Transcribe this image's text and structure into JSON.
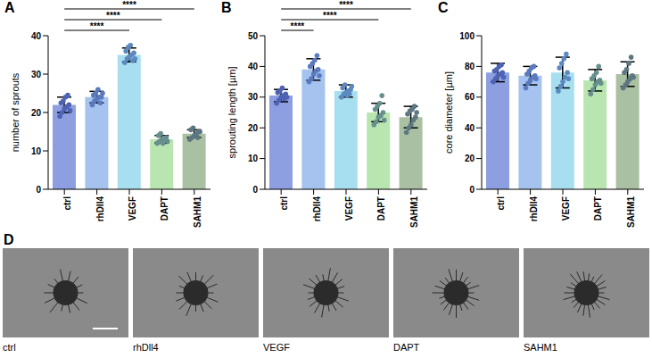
{
  "chart_data": [
    {
      "type": "bar",
      "title": "A",
      "y_label": "number of sprouts",
      "categories": [
        "ctrl",
        "rhDll4",
        "VEGF",
        "DAPT",
        "SAHM1"
      ],
      "values": [
        22,
        24,
        35,
        13,
        14.5
      ],
      "errors": [
        2,
        1.5,
        1.8,
        1,
        1
      ],
      "points": [
        [
          19,
          20,
          21,
          21.5,
          22,
          22.5,
          23,
          24,
          24.5,
          20.5
        ],
        [
          22,
          23,
          23.5,
          24,
          24,
          24.5,
          25,
          26,
          22.5,
          25
        ],
        [
          33,
          34,
          34.5,
          35,
          35.5,
          36,
          37,
          37.5,
          33.5,
          34
        ],
        [
          12,
          12.5,
          13,
          13,
          13.5,
          14,
          14.5,
          12,
          13,
          12.5
        ],
        [
          13,
          13.5,
          14,
          14.5,
          15,
          15.5,
          16,
          14,
          13.5,
          15
        ]
      ],
      "colors": [
        "#8d9fe0",
        "#a5c3ee",
        "#a8dff0",
        "#b9e6b0",
        "#a9c0a2"
      ],
      "ylim": [
        0,
        40
      ],
      "yticks": [
        0,
        10,
        20,
        30,
        40
      ],
      "annotations": [
        {
          "from": "ctrl",
          "to": "VEGF",
          "label": "****"
        },
        {
          "from": "ctrl",
          "to": "DAPT",
          "label": "****"
        },
        {
          "from": "ctrl",
          "to": "SAHM1",
          "label": "****"
        }
      ]
    },
    {
      "type": "bar",
      "title": "B",
      "y_label": "sprouting length [µm]",
      "categories": [
        "ctrl",
        "rhDll4",
        "VEGF",
        "DAPT",
        "SAHM1"
      ],
      "values": [
        30.5,
        39,
        32,
        25,
        23.5
      ],
      "errors": [
        2,
        3.5,
        2,
        3,
        3.5
      ],
      "points": [
        [
          28,
          29,
          30,
          30.5,
          31,
          31.5,
          32,
          33,
          29.5,
          30
        ],
        [
          35,
          36,
          37.5,
          38.5,
          39,
          40,
          41,
          42,
          43.5,
          37
        ],
        [
          30,
          31,
          31.5,
          32,
          32.5,
          33,
          34,
          30.5,
          31,
          33.5
        ],
        [
          21,
          22,
          23.5,
          24,
          25,
          26,
          27,
          28,
          30.5,
          22.5
        ],
        [
          18.5,
          20,
          21,
          22.5,
          23.5,
          24.5,
          25.5,
          26,
          27,
          25
        ]
      ],
      "colors": [
        "#8d9fe0",
        "#a5c3ee",
        "#a8dff0",
        "#b9e6b0",
        "#a9c0a2"
      ],
      "ylim": [
        0,
        50
      ],
      "yticks": [
        0,
        10,
        20,
        30,
        40,
        50
      ],
      "annotations": [
        {
          "from": "ctrl",
          "to": "rhDll4",
          "label": "****"
        },
        {
          "from": "ctrl",
          "to": "DAPT",
          "label": "****"
        },
        {
          "from": "ctrl",
          "to": "SAHM1",
          "label": "****"
        }
      ]
    },
    {
      "type": "bar",
      "title": "C",
      "y_label": "core diameter [µm]",
      "categories": [
        "ctrl",
        "rhDll4",
        "VEGF",
        "DAPT",
        "SAHM1"
      ],
      "values": [
        76,
        74,
        76,
        71,
        75
      ],
      "errors": [
        6,
        6,
        10,
        7,
        8
      ],
      "points": [
        [
          70,
          72,
          74,
          75,
          76,
          77,
          78,
          80,
          81,
          73
        ],
        [
          66,
          69,
          71,
          73,
          74,
          75,
          77,
          79,
          80,
          72
        ],
        [
          64,
          67,
          70,
          73,
          76,
          79,
          82,
          85,
          88,
          72
        ],
        [
          62,
          65,
          68,
          70,
          71,
          72,
          74,
          76,
          80,
          69
        ],
        [
          66,
          68,
          70,
          72,
          74,
          76,
          78,
          82,
          86,
          73
        ]
      ],
      "colors": [
        "#8d9fe0",
        "#a5c3ee",
        "#a8dff0",
        "#b9e6b0",
        "#a9c0a2"
      ],
      "ylim": [
        0,
        100
      ],
      "yticks": [
        0,
        20,
        40,
        60,
        80,
        100
      ],
      "annotations": []
    }
  ],
  "image_panel": {
    "title": "D",
    "labels": [
      "ctrl",
      "rhDll4",
      "VEGF",
      "DAPT",
      "SAHM1"
    ]
  }
}
